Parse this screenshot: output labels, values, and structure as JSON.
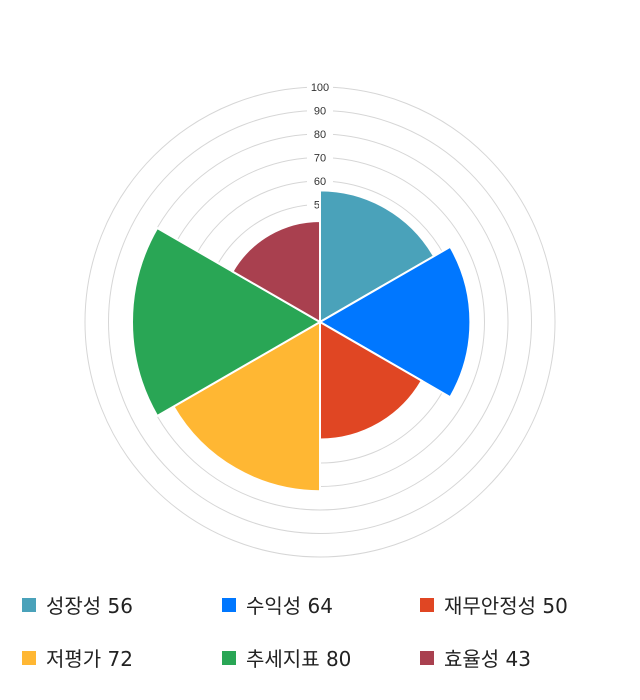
{
  "chart_data": {
    "type": "polar-area",
    "radial_range": [
      0,
      100
    ],
    "tick_labels": [
      "50",
      "60",
      "70",
      "80",
      "90",
      "100"
    ],
    "ticks": [
      50,
      60,
      70,
      80,
      90,
      100
    ],
    "grid": true,
    "legend_placement": "bottom",
    "categories": [
      "성장성",
      "수익성",
      "재무안정성",
      "저평가",
      "추세지표",
      "효율성"
    ],
    "values": [
      56,
      64,
      50,
      72,
      80,
      43
    ],
    "legend_labels": [
      "성장성 56",
      "수익성 64",
      "재무안정성 50",
      "저평가 72",
      "추세지표 80",
      "효율성 43"
    ],
    "colors": [
      "#4aa2ba",
      "#0077ff",
      "#e04623",
      "#ffb733",
      "#29a655",
      "#a9404f"
    ]
  }
}
